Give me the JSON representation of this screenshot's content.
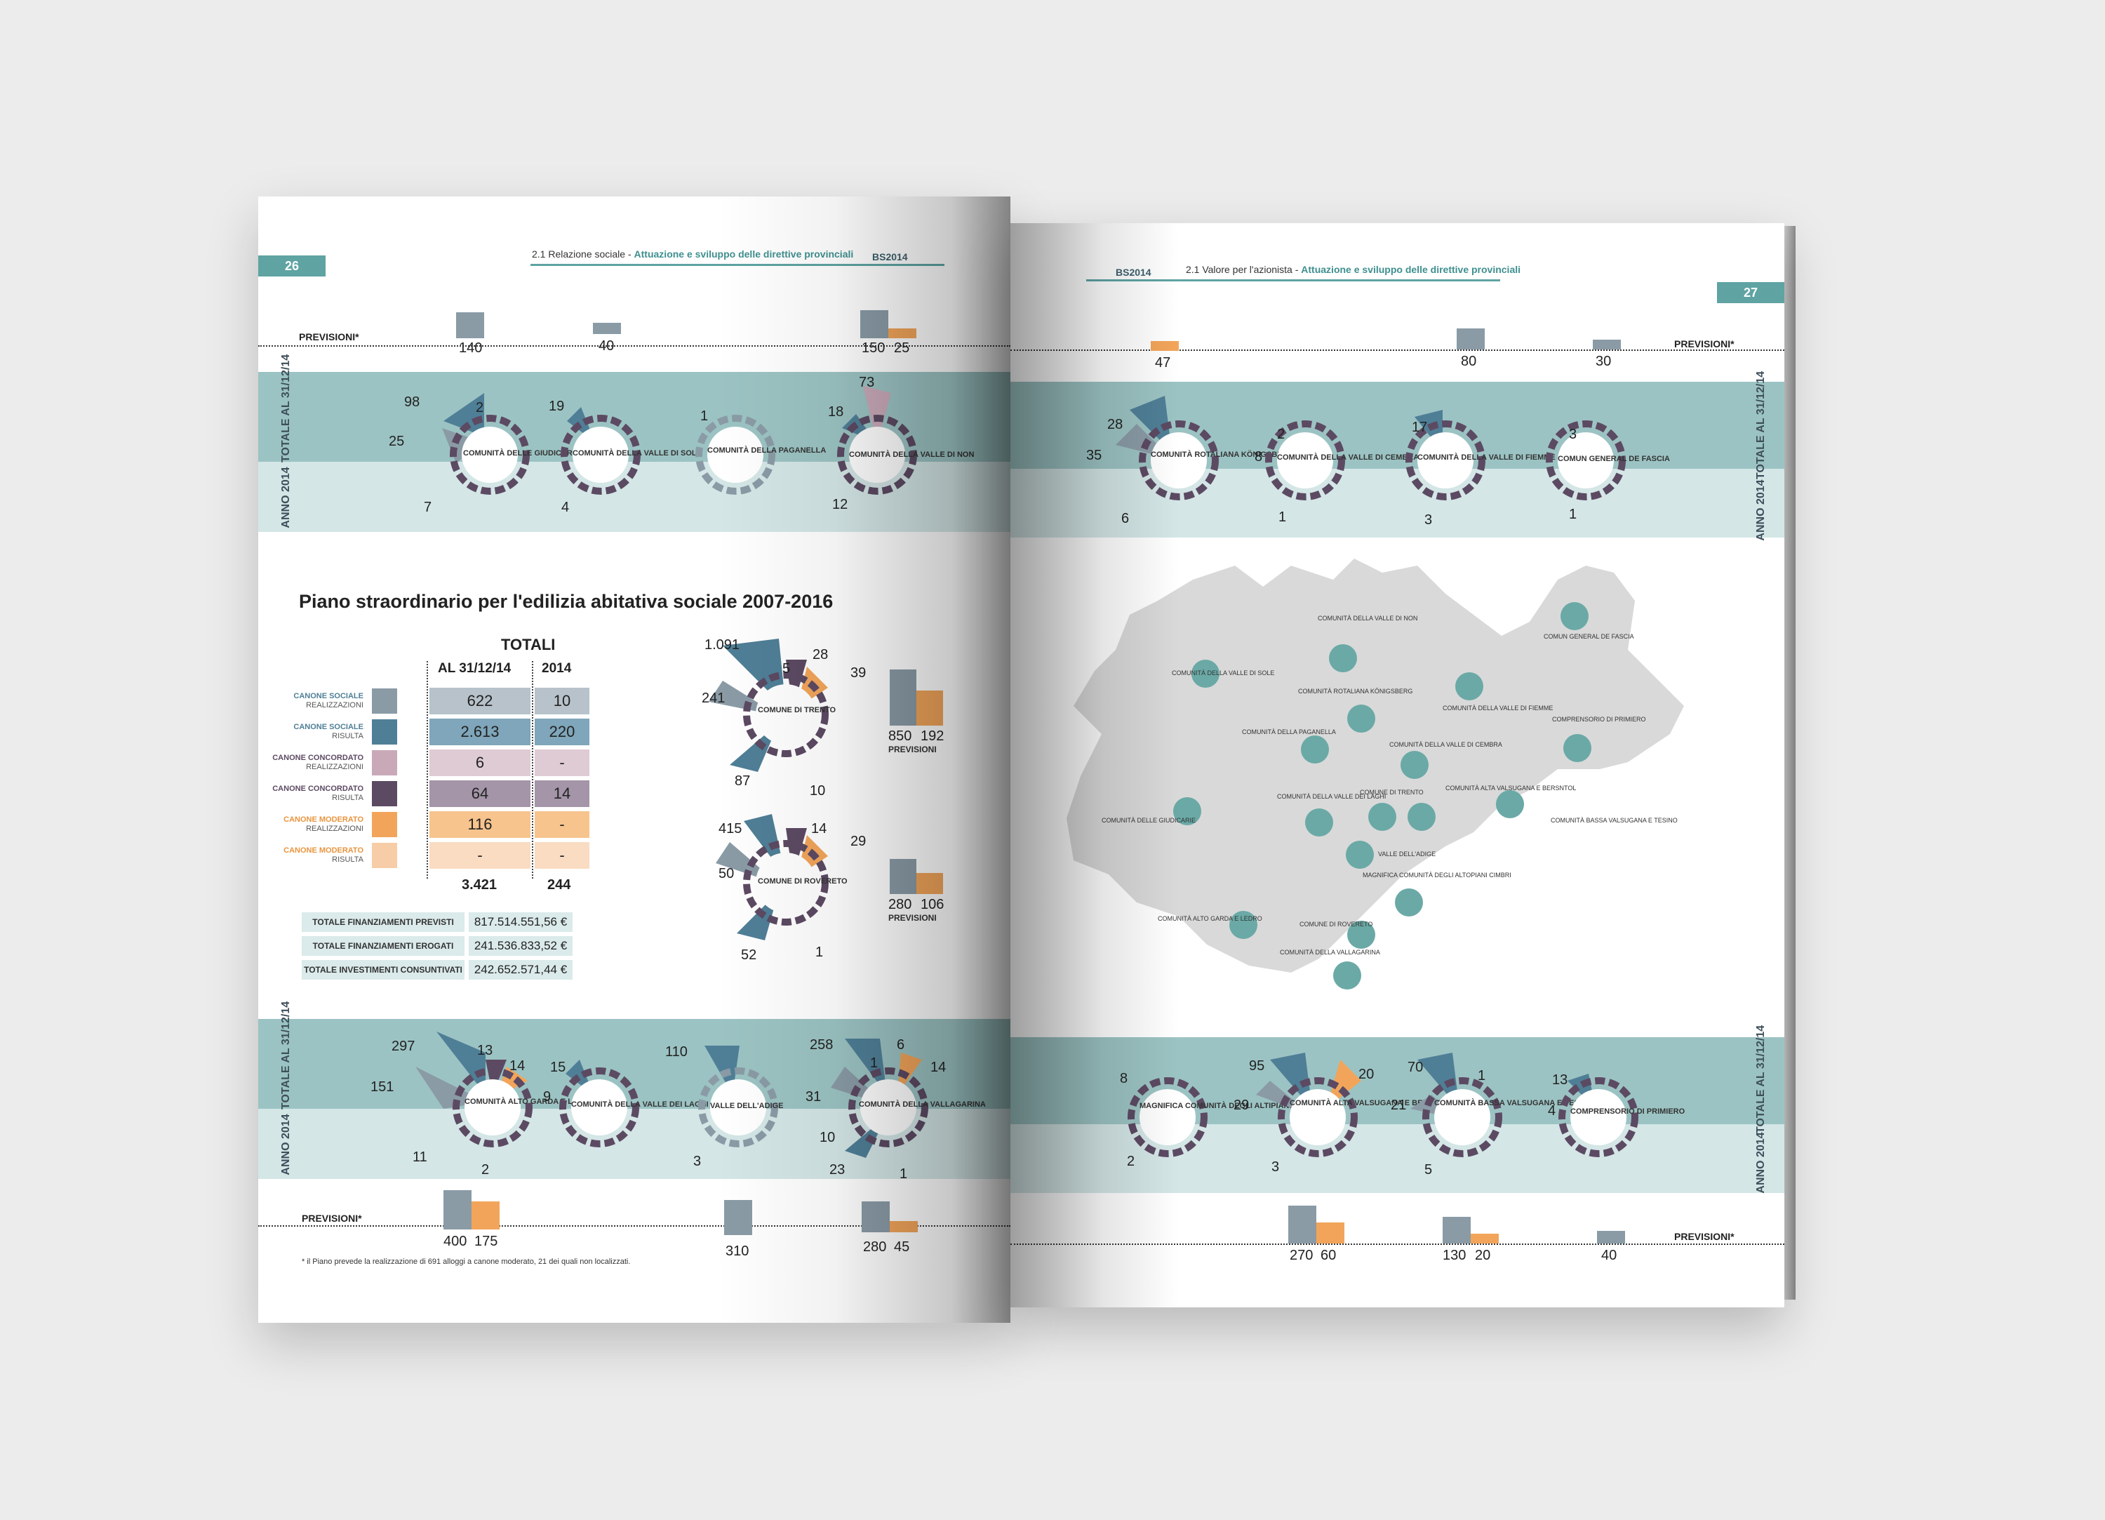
{
  "left_page": {
    "page_number": "26",
    "header_section": "2.1 Relazione sociale - ",
    "header_subtitle": "Attuazione e sviluppo delle direttive provinciali",
    "logo": "BS2014",
    "previsioni_label": "PREVISIONI*",
    "band_total_label": "TOTALE AL 31/12/14",
    "band_year_label": "ANNO 2014",
    "title": "Piano straordinario per l'edilizia abitativa sociale 2007-2016",
    "table": {
      "heading": "TOTALI",
      "col1": "AL 31/12/14",
      "col2": "2014",
      "rows": [
        {
          "cat": "CANONE SOCIALE",
          "sub": "REALIZZAZIONI",
          "total": "622",
          "year": "10"
        },
        {
          "cat": "CANONE SOCIALE",
          "sub": "RISULTA",
          "total": "2.613",
          "year": "220"
        },
        {
          "cat": "CANONE CONCORDATO",
          "sub": "REALIZZAZIONI",
          "total": "6",
          "year": "-"
        },
        {
          "cat": "CANONE CONCORDATO",
          "sub": "RISULTA",
          "total": "64",
          "year": "14"
        },
        {
          "cat": "CANONE MODERATO",
          "sub": "REALIZZAZIONI",
          "total": "116",
          "year": "-"
        },
        {
          "cat": "CANONE MODERATO",
          "sub": "RISULTA",
          "total": "-",
          "year": "-"
        }
      ],
      "sum_total": "3.421",
      "sum_year": "244"
    },
    "financing": [
      {
        "label": "TOTALE FINANZIAMENTI PREVISTI",
        "value": "817.514.551,56 €"
      },
      {
        "label": "TOTALE FINANZIAMENTI EROGATI",
        "value": "241.536.833,52 €"
      },
      {
        "label": "TOTALE INVESTIMENTI CONSUNTIVATI",
        "value": "242.652.571,44 €"
      }
    ],
    "top_previsioni": [
      "140",
      "40",
      "150",
      "25"
    ],
    "top_row": [
      {
        "name": "COMUNITÀ DELLE GIUDICARIE",
        "vals": [
          "98",
          "2",
          "25",
          "7"
        ]
      },
      {
        "name": "COMUNITÀ DELLA VALLE DI SOLE",
        "vals": [
          "19",
          "4"
        ]
      },
      {
        "name": "COMUNITÀ DELLA PAGANELLA",
        "vals": [
          "1"
        ]
      },
      {
        "name": "COMUNITÀ DELLA VALLE DI NON",
        "vals": [
          "73",
          "18",
          "12"
        ]
      }
    ],
    "mid": [
      {
        "name": "COMUNE DI TRENTO",
        "vals": [
          "1.091",
          "5",
          "28",
          "39",
          "241",
          "87",
          "10"
        ],
        "prev": [
          "850",
          "192"
        ],
        "prev_label": "PREVISIONI"
      },
      {
        "name": "COMUNE DI ROVERETO",
        "vals": [
          "415",
          "14",
          "29",
          "50",
          "52",
          "1"
        ],
        "prev": [
          "280",
          "106"
        ],
        "prev_label": "PREVISIONI"
      }
    ],
    "bottom_row": [
      {
        "name": "COMUNITÀ ALTO GARDA E LEDRO",
        "vals": [
          "297",
          "13",
          "14",
          "151",
          "11",
          "2"
        ]
      },
      {
        "name": "COMUNITÀ DELLA VALLE DEI LAGHI",
        "vals": [
          "15",
          "9"
        ]
      },
      {
        "name": "VALLE DELL'ADIGE",
        "vals": [
          "110",
          "3"
        ]
      },
      {
        "name": "COMUNITÀ DELLA VALLAGARINA",
        "vals": [
          "258",
          "1",
          "6",
          "14",
          "31",
          "10",
          "23",
          "1"
        ]
      }
    ],
    "bottom_previsioni": [
      "400",
      "175",
      "310",
      "280",
      "45"
    ],
    "footnote": "* il Piano prevede la realizzazione di 691 alloggi a canone moderato, 21 dei quali non localizzati."
  },
  "right_page": {
    "page_number": "27",
    "header_section": "2.1 Valore per l'azionista - ",
    "header_subtitle": "Attuazione e sviluppo delle direttive provinciali",
    "logo": "BS2014",
    "previsioni_label": "PREVISIONI*",
    "band_total_label": "TOTALE AL 31/12/14",
    "band_year_label": "ANNO 2014",
    "top_previsioni": [
      "47",
      "80",
      "30"
    ],
    "top_row": [
      {
        "name": "COMUNITÀ ROTALIANA KÖNIGSBERG",
        "vals": [
          "28",
          "35",
          "6"
        ]
      },
      {
        "name": "COMUNITÀ DELLA VALLE DI CEMBRA",
        "vals": [
          "2",
          "8",
          "1"
        ]
      },
      {
        "name": "COMUNITÀ DELLA VALLE DI FIEMME",
        "vals": [
          "17",
          "3"
        ]
      },
      {
        "name": "COMUN GENERAL DE FASCIA",
        "vals": [
          "3",
          "1"
        ]
      }
    ],
    "bottom_row": [
      {
        "name": "MAGNIFICA COMUNITÀ DEGLI ALTIPIANI CIMBRI",
        "vals": [
          "8",
          "2"
        ]
      },
      {
        "name": "COMUNITÀ ALTA VALSUGANA E BERSNTOL",
        "vals": [
          "95",
          "20",
          "29",
          "3"
        ]
      },
      {
        "name": "COMUNITÀ BASSA VALSUGANA E TESINO",
        "vals": [
          "70",
          "1",
          "21",
          "5"
        ]
      },
      {
        "name": "COMPRENSORIO DI PRIMIERO",
        "vals": [
          "13",
          "4"
        ]
      }
    ],
    "bottom_previsioni": [
      "270",
      "60",
      "130",
      "20",
      "40"
    ],
    "map_labels": [
      "COMUNITÀ DELLA VALLE DI NON",
      "COMUN GENERAL DE FASCIA",
      "COMUNITÀ DELLA VALLE DI SOLE",
      "COMUNITÀ ROTALIANA KÖNIGSBERG",
      "COMUNITÀ DELLA VALLE DI FIEMME",
      "COMUNITÀ DELLA PAGANELLA",
      "COMUNITÀ DELLA VALLE DI CEMBRA",
      "COMPRENSORIO DI PRIMIERO",
      "COMUNITÀ DELLE GIUDICARIE",
      "COMUNITÀ DELLA VALLE DEI LAGHI",
      "COMUNE DI TRENTO",
      "COMUNITÀ ALTA VALSUGANA E BERSNTOL",
      "COMUNITÀ BASSA VALSUGANA E TESINO",
      "VALLE DELL'ADIGE",
      "MAGNIFICA COMUNITÀ DEGLI ALTOPIANI CIMBRI",
      "COMUNITÀ ALTO GARDA E LEDRO",
      "COMUNE DI ROVERETO",
      "COMUNITÀ DELLA VALLAGARINA"
    ]
  },
  "colors": {
    "teal": "#5fa3a3",
    "band_dark": "#9cc3c3",
    "band_light": "#d4e6e6",
    "canone_sociale_real": "#8a9ba6",
    "canone_sociale_ris": "#4f7f97",
    "canone_concordato_real": "#c9a9b8",
    "canone_concordato_ris": "#5c4a63",
    "canone_moderato_real": "#f2a55a",
    "canone_moderato_ris": "#f7cda7"
  }
}
